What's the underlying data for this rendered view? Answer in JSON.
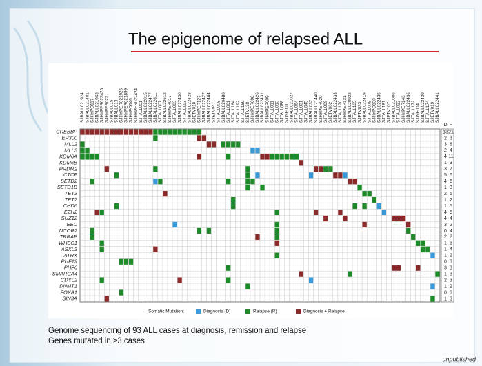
{
  "header": {
    "title": "The epigenome of relapsed ALL"
  },
  "matrix": {
    "samples": [
      "SJBALL021924",
      "SJBALL021481",
      "SJHYPO117",
      "SJBALL021963",
      "SJHYPER023425",
      "SJHYPER022",
      "SJBALL015",
      "SJBALL013",
      "SJHYPER021925",
      "SJHYPER021899",
      "SJHYPO146",
      "SJHYPER022424",
      "SJTALL001",
      "SJBALL022015",
      "SJBALL022477",
      "SJBALL022611",
      "SJTALL007",
      "SJBALL022612",
      "SJHYPER017",
      "SJTALL003",
      "SJBALL022430",
      "SJTALL113",
      "SJBALL022428",
      "SJETV010",
      "SJHYPER127",
      "SJBALL022427",
      "SJBALL022484",
      "SJETV047",
      "SJTALL008",
      "SJBALL020480",
      "SJTALL061",
      "SJTALL164",
      "SJTALL192",
      "SJTALL169",
      "SJETV138",
      "SJHYPER098",
      "SJBALL022426",
      "SJBALL022431",
      "SJHYPER009",
      "SJTALL011",
      "SJTALL013",
      "SJTALL088",
      "SJINF001",
      "SJBALL021027",
      "SJTALL064",
      "SJTALL031",
      "SJTALL045",
      "SJBALL032",
      "SJBALL021440",
      "SJHYPER020",
      "SJTALL009",
      "SJETV062",
      "SJBALL022433",
      "SJTALL170",
      "SJHYPER131",
      "SJBALL020922",
      "SJTALL105",
      "SJETV033",
      "SJBALL022419",
      "SJTALL078",
      "SJHYPO130",
      "SJBALL022435",
      "SJTALL181",
      "SJETV107",
      "SJBALL021086",
      "SJTALL022",
      "SJHYPER146",
      "SJBALL022436",
      "SJTALL172",
      "SJINF004",
      "SJBALL022439",
      "SJTALL174",
      "SJETV019",
      "SJBALL022441"
    ],
    "count_headers": [
      "D",
      "R"
    ],
    "rows": [
      {
        "gene": "CREBBP",
        "counts": [
          13,
          21
        ],
        "cells": [
          [
            0,
            2
          ],
          [
            1,
            2
          ],
          [
            2,
            2
          ],
          [
            3,
            2
          ],
          [
            4,
            2
          ],
          [
            5,
            2
          ],
          [
            6,
            2
          ],
          [
            7,
            2
          ],
          [
            8,
            2
          ],
          [
            9,
            2
          ],
          [
            10,
            2
          ],
          [
            11,
            2
          ],
          [
            12,
            2
          ],
          [
            13,
            2
          ],
          [
            14,
            2
          ],
          [
            15,
            1
          ],
          [
            16,
            1
          ],
          [
            17,
            1
          ],
          [
            18,
            1
          ],
          [
            19,
            1
          ],
          [
            20,
            1
          ],
          [
            21,
            1
          ],
          [
            22,
            1
          ],
          [
            23,
            1
          ],
          [
            24,
            1
          ]
        ]
      },
      {
        "gene": "EP300",
        "counts": [
          2,
          3
        ],
        "cells": [
          [
            15,
            1
          ],
          [
            24,
            2
          ],
          [
            25,
            2
          ]
        ]
      },
      {
        "gene": "MLL2",
        "counts": [
          3,
          8
        ],
        "cells": [
          [
            0,
            1
          ],
          [
            26,
            2
          ],
          [
            27,
            2
          ],
          [
            29,
            1
          ],
          [
            30,
            1
          ],
          [
            31,
            1
          ],
          [
            32,
            1
          ]
        ]
      },
      {
        "gene": "MLL3",
        "counts": [
          2,
          4
        ],
        "cells": [
          [
            0,
            1
          ],
          [
            1,
            1
          ],
          [
            35,
            0
          ],
          [
            36,
            0
          ]
        ]
      },
      {
        "gene": "KDM6A",
        "counts": [
          4,
          11
        ],
        "cells": [
          [
            0,
            1
          ],
          [
            1,
            1
          ],
          [
            2,
            1
          ],
          [
            3,
            1
          ],
          [
            24,
            2
          ],
          [
            30,
            1
          ],
          [
            37,
            2
          ],
          [
            38,
            2
          ],
          [
            39,
            1
          ],
          [
            40,
            1
          ],
          [
            41,
            1
          ],
          [
            42,
            1
          ],
          [
            43,
            1
          ],
          [
            44,
            1
          ]
        ]
      },
      {
        "gene": "KDM6B",
        "counts": [
          1,
          3
        ],
        "cells": [
          [
            45,
            2
          ]
        ]
      },
      {
        "gene": "PRDM2",
        "counts": [
          3,
          7
        ],
        "cells": [
          [
            5,
            2
          ],
          [
            15,
            1
          ],
          [
            34,
            1
          ],
          [
            48,
            2
          ],
          [
            49,
            2
          ],
          [
            50,
            1
          ],
          [
            51,
            1
          ]
        ]
      },
      {
        "gene": "CTCF",
        "counts": [
          5,
          6
        ],
        "cells": [
          [
            7,
            1
          ],
          [
            34,
            1
          ],
          [
            36,
            0
          ],
          [
            47,
            0
          ],
          [
            52,
            2
          ],
          [
            53,
            2
          ],
          [
            54,
            0
          ]
        ]
      },
      {
        "gene": "SETD2",
        "counts": [
          4,
          6
        ],
        "cells": [
          [
            2,
            1
          ],
          [
            15,
            0
          ],
          [
            16,
            1
          ],
          [
            30,
            1
          ],
          [
            34,
            1
          ],
          [
            35,
            1
          ],
          [
            55,
            2
          ],
          [
            56,
            2
          ]
        ]
      },
      {
        "gene": "SETD1B",
        "counts": [
          1,
          3
        ],
        "cells": [
          [
            34,
            1
          ],
          [
            37,
            1
          ],
          [
            57,
            1
          ]
        ]
      },
      {
        "gene": "TET3",
        "counts": [
          2,
          5
        ],
        "cells": [
          [
            17,
            2
          ],
          [
            58,
            1
          ],
          [
            59,
            1
          ]
        ]
      },
      {
        "gene": "TET2",
        "counts": [
          1,
          2
        ],
        "cells": [
          [
            31,
            1
          ],
          [
            60,
            1
          ]
        ]
      },
      {
        "gene": "CHD6",
        "counts": [
          1,
          5
        ],
        "cells": [
          [
            7,
            1
          ],
          [
            31,
            1
          ],
          [
            56,
            1
          ],
          [
            58,
            1
          ],
          [
            61,
            0
          ]
        ]
      },
      {
        "gene": "EZH2",
        "counts": [
          4,
          5
        ],
        "cells": [
          [
            3,
            2
          ],
          [
            4,
            1
          ],
          [
            40,
            1
          ],
          [
            48,
            2
          ],
          [
            53,
            2
          ],
          [
            62,
            0
          ]
        ]
      },
      {
        "gene": "SUZ12",
        "counts": [
          4,
          4
        ],
        "cells": [
          [
            50,
            2
          ],
          [
            54,
            2
          ],
          [
            64,
            2
          ],
          [
            65,
            2
          ],
          [
            66,
            2
          ]
        ]
      },
      {
        "gene": "EED",
        "counts": [
          3,
          2
        ],
        "cells": [
          [
            19,
            0
          ],
          [
            40,
            1
          ],
          [
            58,
            2
          ],
          [
            67,
            2
          ]
        ]
      },
      {
        "gene": "NCOR2",
        "counts": [
          0,
          4
        ],
        "cells": [
          [
            2,
            1
          ],
          [
            24,
            1
          ],
          [
            26,
            1
          ],
          [
            40,
            1
          ],
          [
            67,
            1
          ]
        ]
      },
      {
        "gene": "TRRAP",
        "counts": [
          2,
          2
        ],
        "cells": [
          [
            2,
            1
          ],
          [
            36,
            2
          ],
          [
            40,
            1
          ],
          [
            68,
            1
          ]
        ]
      },
      {
        "gene": "WHSC1",
        "counts": [
          1,
          3
        ],
        "cells": [
          [
            4,
            1
          ],
          [
            40,
            2
          ],
          [
            69,
            1
          ],
          [
            70,
            1
          ]
        ]
      },
      {
        "gene": "ASXL3",
        "counts": [
          1,
          4
        ],
        "cells": [
          [
            4,
            1
          ],
          [
            15,
            2
          ],
          [
            70,
            1
          ],
          [
            71,
            1
          ]
        ]
      },
      {
        "gene": "ATRX",
        "counts": [
          1,
          2
        ],
        "cells": [
          [
            40,
            1
          ],
          [
            72,
            0
          ]
        ]
      },
      {
        "gene": "PHF19",
        "counts": [
          0,
          3
        ],
        "cells": [
          [
            8,
            1
          ],
          [
            9,
            1
          ],
          [
            10,
            1
          ]
        ]
      },
      {
        "gene": "PHF6",
        "counts": [
          3,
          3
        ],
        "cells": [
          [
            30,
            1
          ],
          [
            64,
            2
          ],
          [
            65,
            2
          ],
          [
            69,
            2
          ]
        ]
      },
      {
        "gene": "SMARCA4",
        "counts": [
          1,
          3
        ],
        "cells": [
          [
            45,
            2
          ],
          [
            55,
            1
          ],
          [
            73,
            1
          ]
        ]
      },
      {
        "gene": "CDYL2",
        "counts": [
          2,
          3
        ],
        "cells": [
          [
            4,
            1
          ],
          [
            20,
            2
          ],
          [
            30,
            1
          ],
          [
            47,
            0
          ]
        ]
      },
      {
        "gene": "DNMT1",
        "counts": [
          1,
          2
        ],
        "cells": [
          [
            34,
            1
          ],
          [
            72,
            0
          ]
        ]
      },
      {
        "gene": "FOXA1",
        "counts": [
          0,
          3
        ],
        "cells": [
          [
            8,
            1
          ]
        ]
      },
      {
        "gene": "SIN3A",
        "counts": [
          1,
          3
        ],
        "cells": [
          [
            5,
            2
          ],
          [
            72,
            1
          ]
        ]
      }
    ],
    "legend": {
      "title": "Somatic Mutation:",
      "items": [
        {
          "label": "Diagnosis (D)",
          "color": "#3a9ad9"
        },
        {
          "label": "Relapse (R)",
          "color": "#1f8a2a"
        },
        {
          "label": "Diagnosis + Relapse",
          "color": "#8b2a2a"
        }
      ]
    }
  },
  "caption": [
    "Genome sequencing of 93 ALL cases at diagnosis, remission and relapse",
    "Genes mutated in ≥3 cases"
  ],
  "footer": "unpublished"
}
